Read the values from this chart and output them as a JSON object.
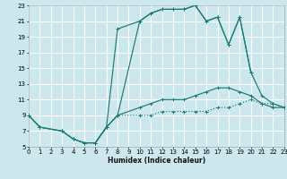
{
  "xlabel": "Humidex (Indice chaleur)",
  "bg_color": "#cce8ee",
  "grid_color": "#ffffff",
  "line_color": "#1b7b6e",
  "xlim": [
    0,
    23
  ],
  "ylim": [
    5,
    23
  ],
  "xtick_labels": [
    "0",
    "1",
    "2",
    "3",
    "4",
    "5",
    "6",
    "7",
    "8",
    "9",
    "10",
    "11",
    "12",
    "13",
    "14",
    "15",
    "16",
    "17",
    "18",
    "19",
    "20",
    "21",
    "22",
    "23"
  ],
  "xticks": [
    0,
    1,
    2,
    3,
    4,
    5,
    6,
    7,
    8,
    9,
    10,
    11,
    12,
    13,
    14,
    15,
    16,
    17,
    18,
    19,
    20,
    21,
    22,
    23
  ],
  "yticks": [
    5,
    7,
    9,
    11,
    13,
    15,
    17,
    19,
    21,
    23
  ],
  "curve1_x": [
    0,
    1,
    3,
    4,
    5,
    6,
    7,
    8,
    10,
    11,
    12,
    13,
    14,
    15,
    16,
    17,
    18,
    19,
    20
  ],
  "curve1_y": [
    9,
    7.5,
    7,
    6,
    5.5,
    5.5,
    7.5,
    9,
    21,
    22,
    22.5,
    22.5,
    22.5,
    23,
    21,
    21.5,
    18,
    21.5,
    14.5
  ],
  "curve1_style": "solid",
  "curve2_x": [
    0,
    1,
    3,
    4,
    5,
    6,
    7,
    8,
    10,
    11,
    12,
    13,
    14,
    15,
    16,
    17,
    18,
    19,
    20,
    21,
    22,
    23
  ],
  "curve2_y": [
    9,
    7.5,
    7,
    6,
    5.5,
    5.5,
    7.5,
    9,
    10,
    10.5,
    11,
    11,
    11,
    11.5,
    12,
    12.5,
    12.5,
    12,
    11.5,
    10.5,
    10,
    10
  ],
  "curve2_style": "solid",
  "curve3_x": [
    0,
    1,
    3,
    4,
    5,
    6,
    7,
    8,
    10,
    11,
    12,
    13,
    14,
    15,
    16,
    17,
    18,
    19,
    20,
    21,
    22,
    23
  ],
  "curve3_y": [
    9,
    7.5,
    7,
    6,
    5.5,
    5.5,
    7.5,
    9,
    9,
    9,
    9.5,
    9.5,
    9.5,
    9.5,
    9.5,
    10,
    10,
    10.5,
    11,
    10.5,
    10.5,
    10
  ],
  "curve3_style": "dotted",
  "curve4_x": [
    6,
    7,
    8,
    10,
    11,
    12,
    13,
    14,
    15,
    16,
    17,
    18,
    19,
    20,
    21,
    22,
    23
  ],
  "curve4_y": [
    5.5,
    7.5,
    20,
    21,
    22,
    22.5,
    22.5,
    22.5,
    23,
    21,
    21.5,
    18,
    21.5,
    14.5,
    11.5,
    10.5,
    10
  ],
  "curve4_style": "solid"
}
